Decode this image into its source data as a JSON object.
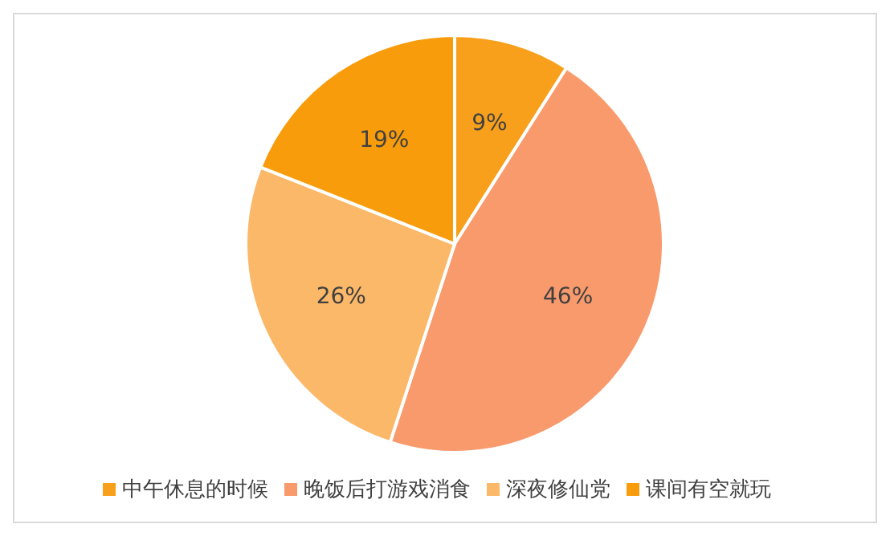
{
  "chart_data": {
    "type": "pie",
    "categories": [
      "中午休息的时候",
      "晚饭后打游戏消食",
      "深夜修仙党",
      "课间有空就玩"
    ],
    "values": [
      9,
      46,
      26,
      19
    ],
    "value_labels": [
      "9%",
      "46%",
      "26%",
      "19%"
    ],
    "colors": [
      "#f8a01c",
      "#f99a6c",
      "#fbb868",
      "#f99c0c"
    ],
    "legend": "bottom"
  }
}
